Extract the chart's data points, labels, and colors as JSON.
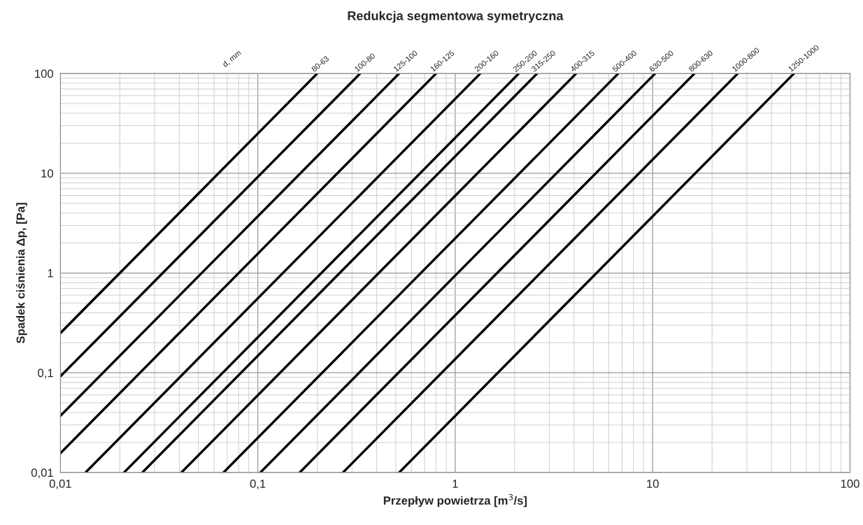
{
  "chart_data": {
    "type": "line",
    "title": "Redukcja segmentowa symetryczna",
    "xlabel": "Przepływ powietrza [m$^{3}$/s]",
    "ylabel": "Spadek ciśnienia Δp, [Pa]",
    "annotations": [
      "d, mm"
    ],
    "log": "xy",
    "grid": true,
    "legend": false,
    "marker": "none",
    "line_style": "solid",
    "xlim": [
      0.01,
      100
    ],
    "ylim": [
      0.01,
      100
    ],
    "xticks": [
      {
        "value": 0.01,
        "label": "0,01"
      },
      {
        "value": 0.1,
        "label": "0,1"
      },
      1,
      10,
      100
    ],
    "yticks": [
      {
        "value": 0.01,
        "label": "0,01"
      },
      {
        "value": 0.1,
        "label": "0,1"
      },
      1,
      10,
      100
    ],
    "series": [
      {
        "name": "80-63",
        "color": "#000000",
        "x": [
          0.01,
          0.2
        ],
        "values": [
          0.25,
          100
        ]
      },
      {
        "name": "100-80",
        "color": "#000000",
        "x": [
          0.01,
          0.33
        ],
        "values": [
          0.092,
          100
        ]
      },
      {
        "name": "125-100",
        "color": "#000000",
        "x": [
          0.01,
          0.52
        ],
        "values": [
          0.037,
          100
        ]
      },
      {
        "name": "160-125",
        "color": "#000000",
        "x": [
          0.01,
          0.8
        ],
        "values": [
          0.0156,
          100
        ]
      },
      {
        "name": "200-160",
        "color": "#000000",
        "x": [
          0.0134,
          1.34
        ],
        "values": [
          0.01,
          100
        ]
      },
      {
        "name": "250-200",
        "color": "#000000",
        "x": [
          0.021,
          2.1
        ],
        "values": [
          0.01,
          100
        ]
      },
      {
        "name": "315-250",
        "color": "#000000",
        "x": [
          0.026,
          2.6
        ],
        "values": [
          0.01,
          100
        ]
      },
      {
        "name": "400-315",
        "color": "#000000",
        "x": [
          0.041,
          4.1
        ],
        "values": [
          0.01,
          100
        ]
      },
      {
        "name": "500-400",
        "color": "#000000",
        "x": [
          0.067,
          6.7
        ],
        "values": [
          0.01,
          100
        ]
      },
      {
        "name": "630-500",
        "color": "#000000",
        "x": [
          0.103,
          10.3
        ],
        "values": [
          0.01,
          100
        ]
      },
      {
        "name": "800-630",
        "color": "#000000",
        "x": [
          0.163,
          16.3
        ],
        "values": [
          0.01,
          100
        ]
      },
      {
        "name": "1000-800",
        "color": "#000000",
        "x": [
          0.27,
          27
        ],
        "values": [
          0.01,
          100
        ]
      },
      {
        "name": "1250-1000",
        "color": "#000000",
        "x": [
          0.52,
          52
        ],
        "values": [
          0.01,
          100
        ]
      }
    ]
  }
}
